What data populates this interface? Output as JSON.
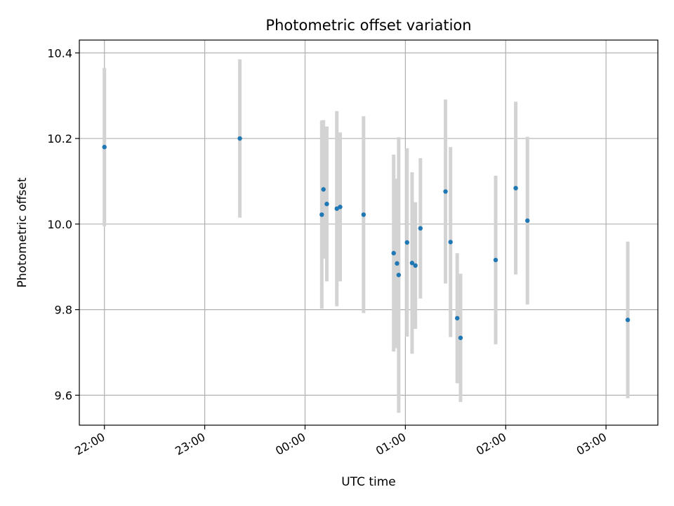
{
  "chart_data": {
    "type": "scatter",
    "title": "Photometric offset variation",
    "xlabel": "UTC time",
    "ylabel": "Photometric offset",
    "x_tick_labels": [
      "22:00",
      "23:00",
      "00:00",
      "01:00",
      "02:00",
      "03:00"
    ],
    "y_tick_labels": [
      "9.6",
      "9.8",
      "10.0",
      "10.2",
      "10.4"
    ],
    "y_ticks": [
      9.6,
      9.8,
      10.0,
      10.2,
      10.4
    ],
    "xlim": [
      "21:45",
      "03:31"
    ],
    "ylim": [
      9.53,
      10.43
    ],
    "grid": true,
    "colors": {
      "point": "#1f77b4",
      "errorbar": "#d3d3d3",
      "grid": "#b0b0b0"
    },
    "points": [
      {
        "x": "22:00",
        "y": 10.18,
        "err": 0.185
      },
      {
        "x": "23:21",
        "y": 10.2,
        "err": 0.185
      },
      {
        "x": "00:10",
        "y": 10.022,
        "err": 0.22
      },
      {
        "x": "00:11",
        "y": 10.081,
        "err": 0.162
      },
      {
        "x": "00:13",
        "y": 10.047,
        "err": 0.181
      },
      {
        "x": "00:19",
        "y": 10.036,
        "err": 0.228
      },
      {
        "x": "00:21",
        "y": 10.04,
        "err": 0.174
      },
      {
        "x": "00:35",
        "y": 10.022,
        "err": 0.23
      },
      {
        "x": "00:53",
        "y": 9.932,
        "err": 0.23
      },
      {
        "x": "00:55",
        "y": 9.908,
        "err": 0.198
      },
      {
        "x": "00:56",
        "y": 9.881,
        "err": 0.322
      },
      {
        "x": "01:01",
        "y": 9.957,
        "err": 0.22
      },
      {
        "x": "01:04",
        "y": 9.909,
        "err": 0.212
      },
      {
        "x": "01:06",
        "y": 9.903,
        "err": 0.148
      },
      {
        "x": "01:09",
        "y": 9.99,
        "err": 0.164
      },
      {
        "x": "01:24",
        "y": 10.076,
        "err": 0.215
      },
      {
        "x": "01:27",
        "y": 9.958,
        "err": 0.222
      },
      {
        "x": "01:31",
        "y": 9.78,
        "err": 0.152
      },
      {
        "x": "01:33",
        "y": 9.734,
        "err": 0.15
      },
      {
        "x": "01:54",
        "y": 9.916,
        "err": 0.197
      },
      {
        "x": "02:06",
        "y": 10.084,
        "err": 0.202
      },
      {
        "x": "02:13",
        "y": 10.008,
        "err": 0.196
      },
      {
        "x": "03:13",
        "y": 9.776,
        "err": 0.183
      }
    ]
  }
}
